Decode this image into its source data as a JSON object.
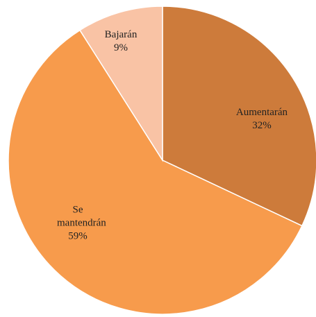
{
  "chart_data": {
    "type": "pie",
    "categories": [
      "Aumentarán",
      "Se mantendrán",
      "Bajarán"
    ],
    "values": [
      32,
      59,
      9
    ],
    "value_labels": [
      "32%",
      "59%",
      "9%"
    ],
    "colors": [
      "#cd7b3b",
      "#f79b4c",
      "#f9c3a5"
    ]
  }
}
